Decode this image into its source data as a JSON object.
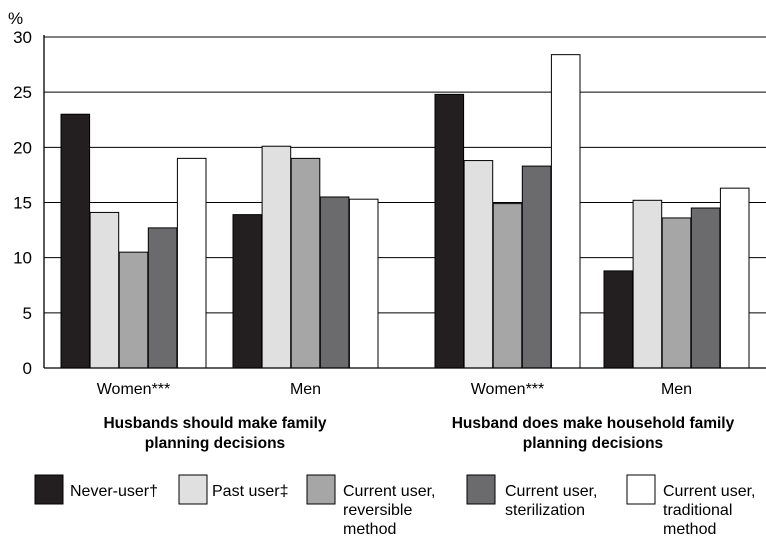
{
  "chart_data": {
    "type": "bar",
    "ylabel": "%",
    "ylim": [
      0,
      30
    ],
    "yticks": [
      0,
      5,
      10,
      15,
      20,
      25,
      30
    ],
    "grid": true,
    "legend_position": "bottom",
    "panels": [
      {
        "label": "Husbands should make family planning decisions",
        "label_lines": [
          "Husbands should make family",
          "planning decisions"
        ],
        "groups": [
          "Women***",
          "Men"
        ]
      },
      {
        "label": "Husband does make household family planning decisions",
        "label_lines": [
          "Husband does make household family",
          "planning decisions"
        ],
        "groups": [
          "Women***",
          "Men"
        ]
      }
    ],
    "categories": [
      "Women***",
      "Men",
      "Women***",
      "Men"
    ],
    "series": [
      {
        "name": "Never-user†",
        "name_lines": [
          "Never-user†"
        ],
        "color": "#231f20",
        "values": [
          23.0,
          13.9,
          24.8,
          8.8
        ]
      },
      {
        "name": "Past user‡",
        "name_lines": [
          "Past user‡"
        ],
        "color": "#e0e0e0",
        "values": [
          14.1,
          20.1,
          18.8,
          15.2
        ]
      },
      {
        "name": "Current user, reversible method",
        "name_lines": [
          "Current user,",
          "reversible",
          "method"
        ],
        "color": "#a6a6a6",
        "values": [
          10.5,
          19.0,
          14.9,
          13.6
        ]
      },
      {
        "name": "Current user, sterilization",
        "name_lines": [
          "Current user,",
          "sterilization"
        ],
        "color": "#6b6b6e",
        "values": [
          12.7,
          15.5,
          18.3,
          14.5
        ]
      },
      {
        "name": "Current user, traditional method",
        "name_lines": [
          "Current user,",
          "traditional",
          "method"
        ],
        "color": "#ffffff",
        "values": [
          19.0,
          15.3,
          28.4,
          16.3
        ]
      }
    ]
  }
}
